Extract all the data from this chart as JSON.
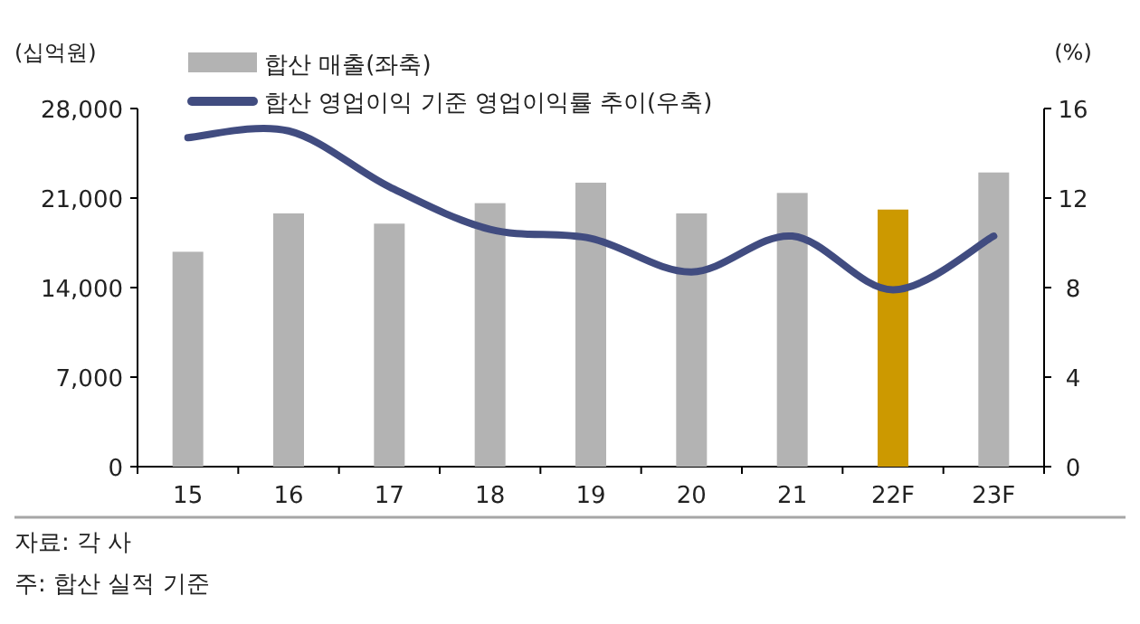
{
  "chart_data": {
    "type": "bar",
    "ylabel": "(십억원)",
    "y2label": "(%)",
    "categories": [
      "15",
      "16",
      "17",
      "18",
      "19",
      "20",
      "21",
      "22F",
      "23F"
    ],
    "series": [
      {
        "name": "합산 매출(좌축)",
        "color": "#b3b3b3",
        "colors": [
          "#b3b3b3",
          "#b3b3b3",
          "#b3b3b3",
          "#b3b3b3",
          "#b3b3b3",
          "#b3b3b3",
          "#b3b3b3",
          "#cc9900",
          "#b3b3b3"
        ],
        "values": [
          16800,
          19800,
          19000,
          20600,
          22200,
          19800,
          21400,
          20100,
          23000
        ]
      },
      {
        "name": "합산 영업이익 기준 영업이익률 추이(우축)",
        "type": "line",
        "axis": "y2",
        "color": "#414c80",
        "values": [
          14.7,
          15.0,
          12.5,
          10.6,
          10.2,
          8.7,
          10.3,
          7.9,
          10.3
        ]
      }
    ],
    "ylim": [
      0,
      28000
    ],
    "yticks": [
      {
        "value": 0,
        "label": "0"
      },
      {
        "value": 7000,
        "label": "7,000"
      },
      {
        "value": 14000,
        "label": "14,000"
      },
      {
        "value": 21000,
        "label": "21,000"
      },
      {
        "value": 28000,
        "label": "28,000"
      }
    ],
    "y2lim": [
      0,
      16
    ],
    "y2ticks": [
      0,
      4,
      8,
      12,
      16
    ],
    "legend": "top left",
    "annotations": [
      "자료: 각 사",
      "주: 합산 실적 기준"
    ]
  }
}
